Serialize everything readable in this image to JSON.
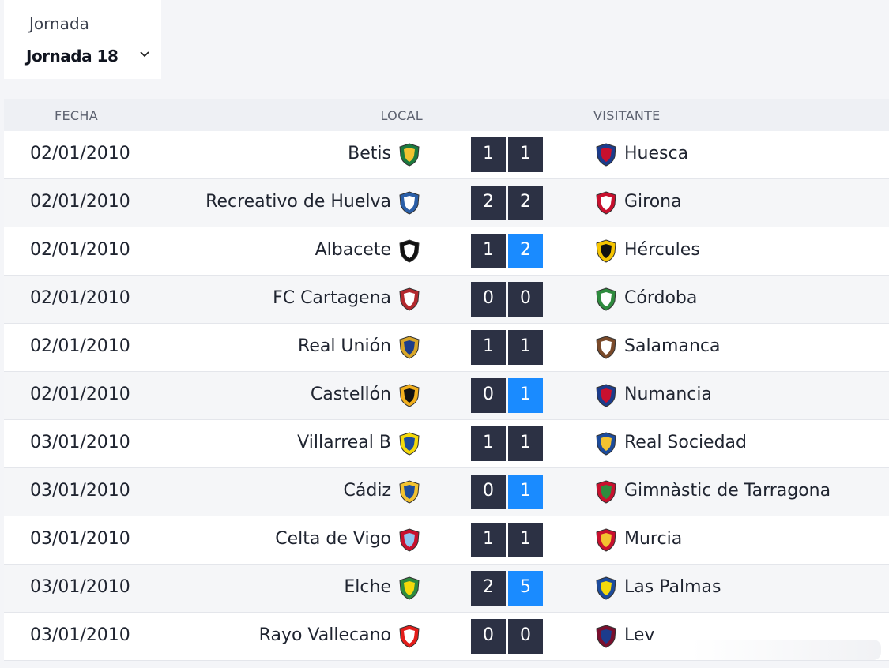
{
  "jornada": {
    "caption": "Jornada",
    "selected": "Jornada 18"
  },
  "table": {
    "headers": {
      "fecha": "FECHA",
      "local": "LOCAL",
      "visitante": "VISITANTE"
    },
    "rows": [
      {
        "date": "02/01/2010",
        "home": "Betis",
        "home_goals": "1",
        "away_goals": "1",
        "away": "Huesca",
        "winner": "draw"
      },
      {
        "date": "02/01/2010",
        "home": "Recreativo de Huelva",
        "home_goals": "2",
        "away_goals": "2",
        "away": "Girona",
        "winner": "draw"
      },
      {
        "date": "02/01/2010",
        "home": "Albacete",
        "home_goals": "1",
        "away_goals": "2",
        "away": "Hércules",
        "winner": "away"
      },
      {
        "date": "02/01/2010",
        "home": "FC Cartagena",
        "home_goals": "0",
        "away_goals": "0",
        "away": "Córdoba",
        "winner": "draw"
      },
      {
        "date": "02/01/2010",
        "home": "Real Unión",
        "home_goals": "1",
        "away_goals": "1",
        "away": "Salamanca",
        "winner": "draw"
      },
      {
        "date": "02/01/2010",
        "home": "Castellón",
        "home_goals": "0",
        "away_goals": "1",
        "away": "Numancia",
        "winner": "away"
      },
      {
        "date": "03/01/2010",
        "home": "Villarreal B",
        "home_goals": "1",
        "away_goals": "1",
        "away": "Real Sociedad",
        "winner": "draw"
      },
      {
        "date": "03/01/2010",
        "home": "Cádiz",
        "home_goals": "0",
        "away_goals": "1",
        "away": "Gimnàstic de Tarragona",
        "winner": "away"
      },
      {
        "date": "03/01/2010",
        "home": "Celta de Vigo",
        "home_goals": "1",
        "away_goals": "1",
        "away": "Murcia",
        "winner": "draw"
      },
      {
        "date": "03/01/2010",
        "home": "Elche",
        "home_goals": "2",
        "away_goals": "5",
        "away": "Las Palmas",
        "winner": "away"
      },
      {
        "date": "03/01/2010",
        "home": "Rayo Vallecano",
        "home_goals": "0",
        "away_goals": "0",
        "away": "Lev",
        "winner": "draw"
      }
    ]
  },
  "colors": {
    "score_default": "#2c3144",
    "score_win": "#1a8bff"
  },
  "icons": {
    "crest": "team-crest-icon",
    "dropdown": "chevron-down-icon"
  }
}
